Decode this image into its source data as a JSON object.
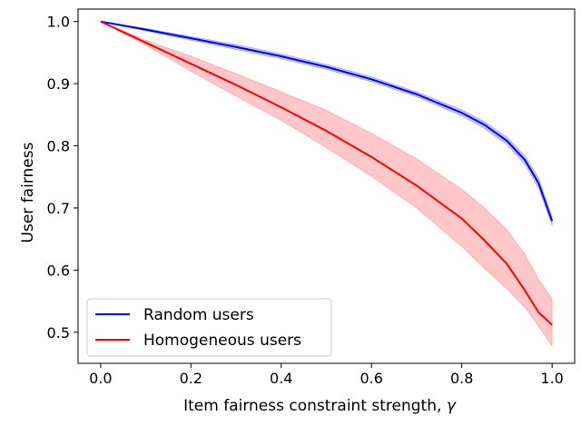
{
  "chart_data": {
    "type": "line",
    "title": "",
    "xlabel": "Item fairness constraint strength, ",
    "xlabel_symbol": "γ",
    "ylabel": "User fairness",
    "xlim": [
      -0.05,
      1.05
    ],
    "ylim": [
      0.45,
      1.02
    ],
    "xticks": [
      0.0,
      0.2,
      0.4,
      0.6,
      0.8,
      1.0
    ],
    "xtick_labels": [
      "0.0",
      "0.2",
      "0.4",
      "0.6",
      "0.8",
      "1.0"
    ],
    "yticks": [
      0.5,
      0.6,
      0.7,
      0.8,
      0.9,
      1.0
    ],
    "ytick_labels": [
      "0.5",
      "0.6",
      "0.7",
      "0.8",
      "0.9",
      "1.0"
    ],
    "grid": false,
    "legend_position": "lower-left",
    "x": [
      0.0,
      0.1,
      0.2,
      0.3,
      0.4,
      0.5,
      0.6,
      0.7,
      0.8,
      0.85,
      0.9,
      0.94,
      0.97,
      1.0
    ],
    "series": [
      {
        "name": "Random users",
        "color": "#0000ff",
        "values": [
          1.0,
          0.987,
          0.973,
          0.959,
          0.944,
          0.927,
          0.907,
          0.883,
          0.853,
          0.834,
          0.808,
          0.777,
          0.74,
          0.679
        ],
        "lower": [
          1.0,
          0.985,
          0.97,
          0.955,
          0.94,
          0.923,
          0.903,
          0.879,
          0.848,
          0.828,
          0.802,
          0.77,
          0.732,
          0.672
        ],
        "upper": [
          1.0,
          0.989,
          0.976,
          0.963,
          0.948,
          0.931,
          0.911,
          0.887,
          0.858,
          0.839,
          0.814,
          0.784,
          0.748,
          0.686
        ]
      },
      {
        "name": "Homogeneous users",
        "color": "#ff0000",
        "values": [
          1.0,
          0.966,
          0.932,
          0.898,
          0.862,
          0.824,
          0.782,
          0.736,
          0.683,
          0.648,
          0.61,
          0.567,
          0.532,
          0.512
        ],
        "lower": [
          1.0,
          0.962,
          0.92,
          0.88,
          0.841,
          0.797,
          0.751,
          0.7,
          0.638,
          0.603,
          0.57,
          0.54,
          0.51,
          0.478
        ],
        "upper": [
          1.0,
          0.97,
          0.944,
          0.916,
          0.887,
          0.857,
          0.82,
          0.779,
          0.73,
          0.7,
          0.665,
          0.625,
          0.585,
          0.554
        ]
      }
    ]
  }
}
